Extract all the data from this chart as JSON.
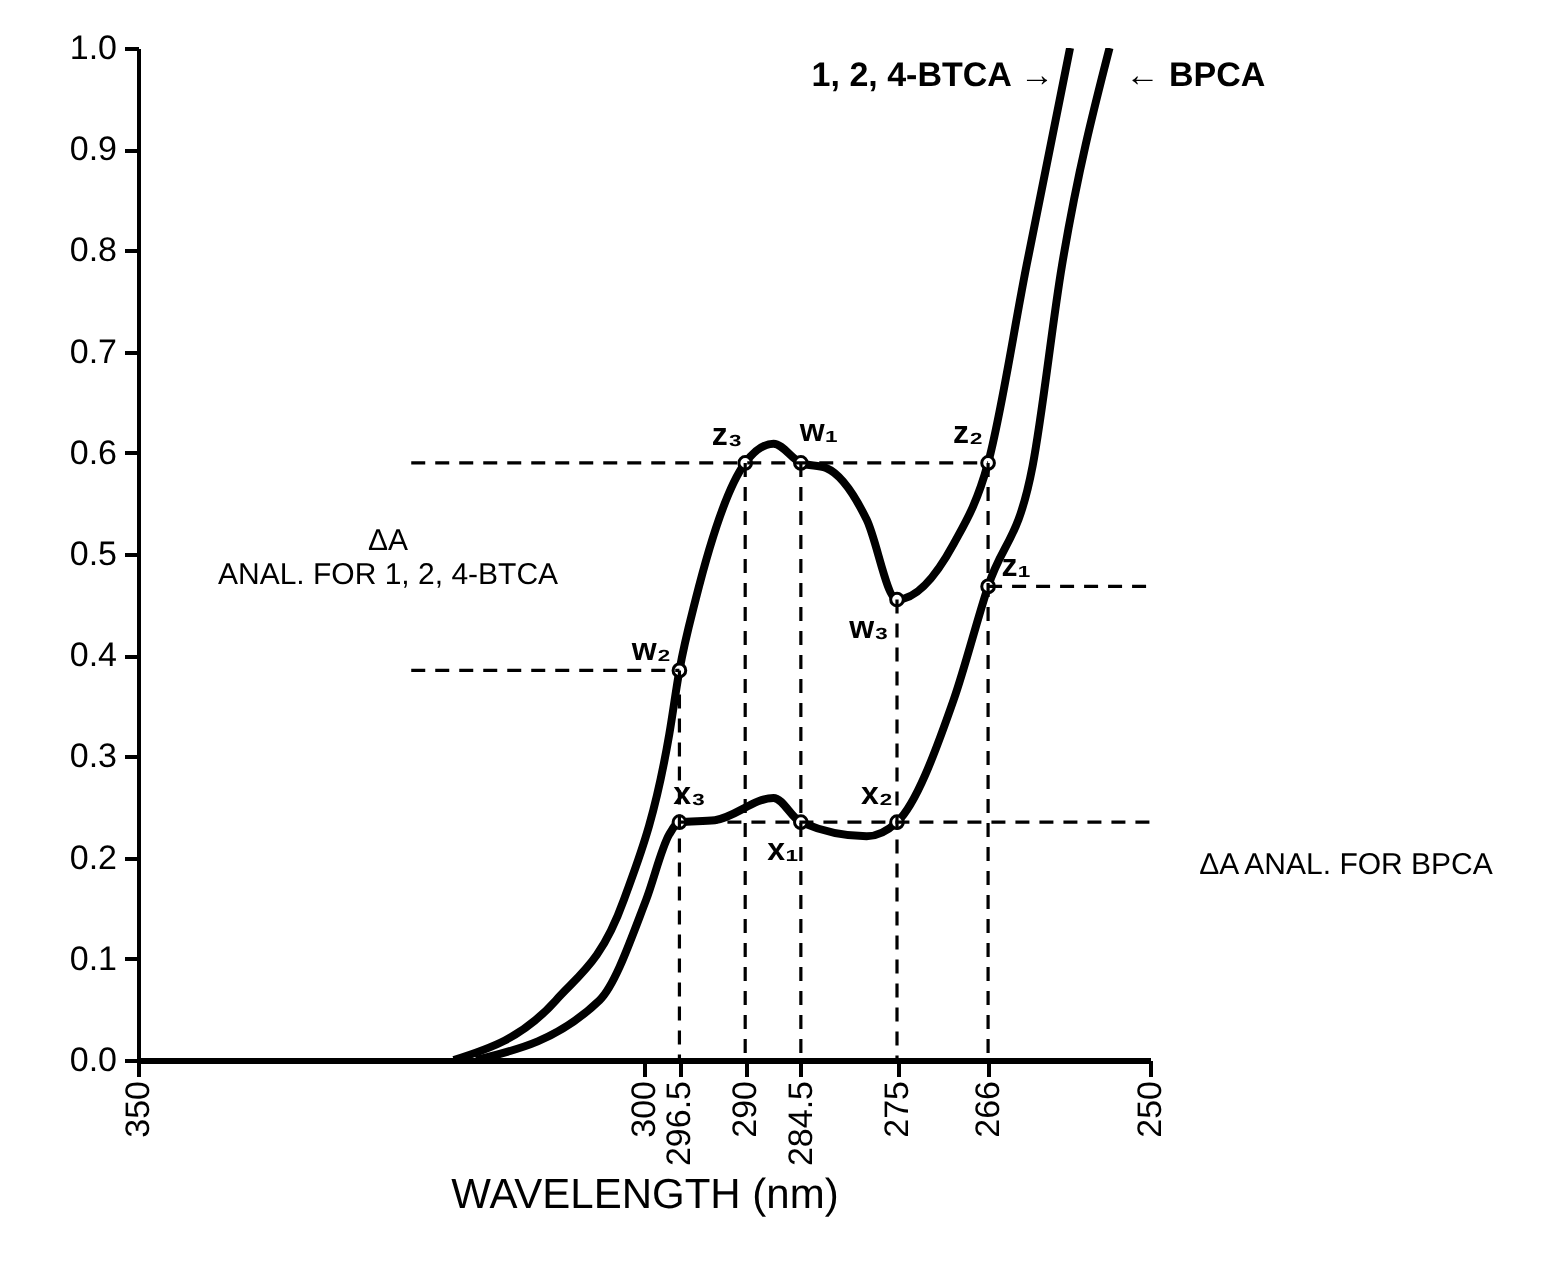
{
  "chart_data": {
    "type": "line",
    "xlabel": "WAVELENGTH (nm)",
    "xlim": [
      350,
      250
    ],
    "xticks": [
      350,
      300,
      296.5,
      290,
      284.5,
      275,
      266,
      250
    ],
    "ylim": [
      0,
      1
    ],
    "yticks": [
      {
        "value": 0,
        "label": "0.0"
      },
      0.1,
      0.2,
      0.3,
      0.4,
      0.5,
      0.6,
      0.7,
      0.8,
      0.9,
      {
        "value": 1,
        "label": "1.0"
      }
    ],
    "grid": false,
    "series": [
      {
        "name": "1, 2, 4-BTCA →",
        "color": "#000000",
        "line_style": "solid",
        "x": [
          318.8,
          308.7,
          302,
          297.5,
          296.5,
          294.9,
          290,
          287.2,
          284.5,
          282,
          278,
          275,
          269.4,
          266,
          262.2,
          257.9
        ],
        "values": [
          0,
          0.059,
          0.158,
          0.322,
          0.385,
          0.455,
          0.59,
          0.609,
          0.59,
          0.585,
          0.534,
          0.455,
          0.51,
          0.59,
          0.785,
          1.0
        ]
      },
      {
        "name": "← BPCA",
        "color": "#000000",
        "line_style": "solid",
        "x": [
          316.6,
          304.4,
          299.8,
          297.5,
          296.5,
          293,
          287.2,
          284.5,
          278,
          275,
          269.4,
          266,
          261.6,
          258.7,
          254
        ],
        "values": [
          0,
          0.059,
          0.158,
          0.223,
          0.235,
          0.237,
          0.259,
          0.235,
          0.221,
          0.235,
          0.356,
          0.468,
          0.587,
          0.785,
          1.0
        ]
      },
      {
        "type": "scatter",
        "marker": "circle",
        "color": "#000000",
        "x": [
          296.5,
          290,
          284.5,
          275,
          266,
          296.5,
          284.5,
          275,
          266
        ],
        "values": [
          0.385,
          0.59,
          0.59,
          0.455,
          0.59,
          0.235,
          0.235,
          0.235,
          0.468
        ]
      },
      {
        "type": "line",
        "line_style": "dashed",
        "color": "#000000",
        "x": [
          323,
          266
        ],
        "values": [
          0.59,
          0.59
        ]
      },
      {
        "type": "line",
        "line_style": "dashed",
        "color": "#000000",
        "x": [
          323,
          296.5
        ],
        "values": [
          0.385,
          0.385
        ]
      },
      {
        "type": "line",
        "line_style": "dashed",
        "color": "#000000",
        "x": [
          266,
          250
        ],
        "values": [
          0.468,
          0.468
        ]
      },
      {
        "type": "line",
        "line_style": "dashed",
        "color": "#000000",
        "x": [
          296.5,
          250
        ],
        "values": [
          0.235,
          0.235
        ]
      },
      {
        "type": "line",
        "line_style": "dashed",
        "color": "#000000",
        "x": [
          296.5,
          296.5
        ],
        "values": [
          0.385,
          0
        ]
      },
      {
        "type": "line",
        "line_style": "dashed",
        "color": "#000000",
        "x": [
          290,
          290
        ],
        "values": [
          0.59,
          0
        ]
      },
      {
        "type": "line",
        "line_style": "dashed",
        "color": "#000000",
        "x": [
          284.5,
          284.5
        ],
        "values": [
          0.59,
          0
        ]
      },
      {
        "type": "line",
        "line_style": "dashed",
        "color": "#000000",
        "x": [
          275,
          275
        ],
        "values": [
          0.455,
          0
        ]
      },
      {
        "type": "line",
        "line_style": "dashed",
        "color": "#000000",
        "x": [
          266,
          266
        ],
        "values": [
          0.59,
          0
        ]
      }
    ],
    "annotations": [
      {
        "text": "z₃",
        "x": 290,
        "y": 0.59
      },
      {
        "text": "w₁",
        "x": 284.5,
        "y": 0.59
      },
      {
        "text": "z₂",
        "x": 266,
        "y": 0.59
      },
      {
        "text": "w₃",
        "x": 275,
        "y": 0.455
      },
      {
        "text": "w₂",
        "x": 296.5,
        "y": 0.385
      },
      {
        "text": "z₁",
        "x": 266,
        "y": 0.468
      },
      {
        "text": "x₃",
        "x": 296.5,
        "y": 0.235
      },
      {
        "text": "x₁",
        "x": 284.5,
        "y": 0.235
      },
      {
        "text": "x₂",
        "x": 275,
        "y": 0.235
      },
      "ΔA\nANAL. FOR 1, 2, 4-BTCA",
      "ΔA ANAL. FOR BPCA"
    ]
  }
}
